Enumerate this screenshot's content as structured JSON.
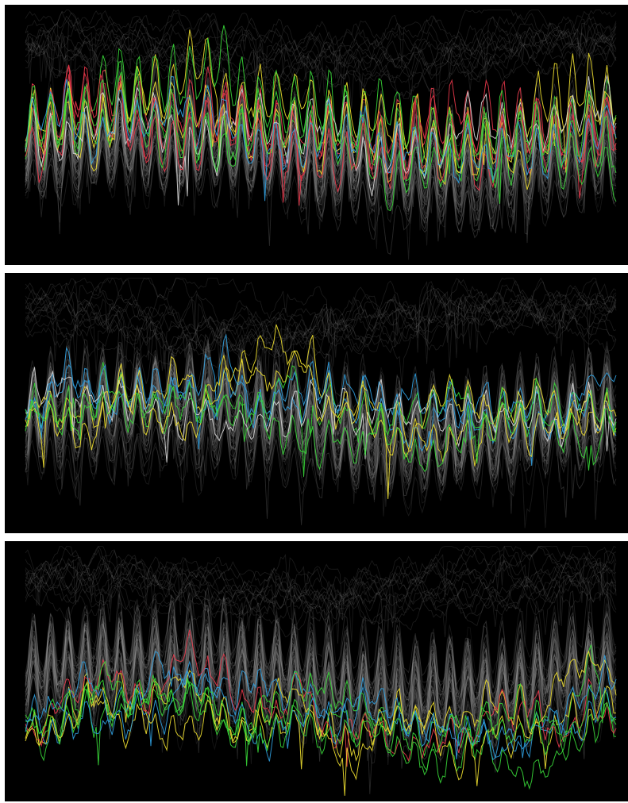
{
  "chart_data": [
    {
      "type": "line",
      "background": "#000000",
      "context_color": "#9a9a9a",
      "highlight_colors": [
        "#e8374a",
        "#f0e030",
        "#38d838",
        "#30a0e0",
        "#d8d8d8"
      ],
      "context_series_count": 60,
      "peak_count": 34,
      "y_range": [
        0,
        1
      ],
      "highlighted": [
        {
          "color": "#e8374a",
          "level": 0.48,
          "amplitude": 0.2
        },
        {
          "color": "#f0e030",
          "level": 0.47,
          "amplitude": 0.19
        },
        {
          "color": "#38d838",
          "level": 0.46,
          "amplitude": 0.21
        },
        {
          "color": "#e8374a",
          "level": 0.44,
          "amplitude": 0.17
        },
        {
          "color": "#f0e030",
          "level": 0.45,
          "amplitude": 0.18
        },
        {
          "color": "#38d838",
          "level": 0.43,
          "amplitude": 0.16
        },
        {
          "color": "#d8d8d8",
          "level": 0.46,
          "amplitude": 0.15
        },
        {
          "color": "#e8374a",
          "level": 0.42,
          "amplitude": 0.19
        },
        {
          "color": "#30a0e0",
          "level": 0.44,
          "amplitude": 0.14
        },
        {
          "color": "#38d838",
          "level": 0.41,
          "amplitude": 0.2
        }
      ]
    },
    {
      "type": "line",
      "background": "#000000",
      "context_color": "#9a9a9a",
      "highlight_colors": [
        "#f0e030",
        "#38d838",
        "#30a0e0",
        "#d8d8d8"
      ],
      "context_series_count": 60,
      "peak_count": 34,
      "y_range": [
        0,
        1
      ],
      "highlighted": [
        {
          "color": "#30a0e0",
          "level": 0.44,
          "amplitude": 0.1
        },
        {
          "color": "#f0e030",
          "level": 0.45,
          "amplitude": 0.11
        },
        {
          "color": "#38d838",
          "level": 0.43,
          "amplitude": 0.1
        },
        {
          "color": "#30a0e0",
          "level": 0.41,
          "amplitude": 0.09
        },
        {
          "color": "#d8d8d8",
          "level": 0.44,
          "amplitude": 0.1
        },
        {
          "color": "#f0e030",
          "level": 0.42,
          "amplitude": 0.09
        },
        {
          "color": "#38d838",
          "level": 0.4,
          "amplitude": 0.1
        }
      ]
    },
    {
      "type": "line",
      "background": "#000000",
      "context_color": "#9a9a9a",
      "highlight_colors": [
        "#e8374a",
        "#f0e030",
        "#38d838",
        "#30a0e0"
      ],
      "context_series_count": 60,
      "peak_count": 34,
      "y_range": [
        0,
        1
      ],
      "highlighted": [
        {
          "color": "#38d838",
          "level": 0.29,
          "amplitude": 0.08
        },
        {
          "color": "#f0e030",
          "level": 0.28,
          "amplitude": 0.09
        },
        {
          "color": "#30a0e0",
          "level": 0.3,
          "amplitude": 0.07
        },
        {
          "color": "#e8374a",
          "level": 0.27,
          "amplitude": 0.08
        },
        {
          "color": "#38d838",
          "level": 0.26,
          "amplitude": 0.09
        },
        {
          "color": "#f0e030",
          "level": 0.25,
          "amplitude": 0.08
        },
        {
          "color": "#30a0e0",
          "level": 0.27,
          "amplitude": 0.07
        },
        {
          "color": "#38d838",
          "level": 0.28,
          "amplitude": 0.08
        }
      ]
    }
  ]
}
